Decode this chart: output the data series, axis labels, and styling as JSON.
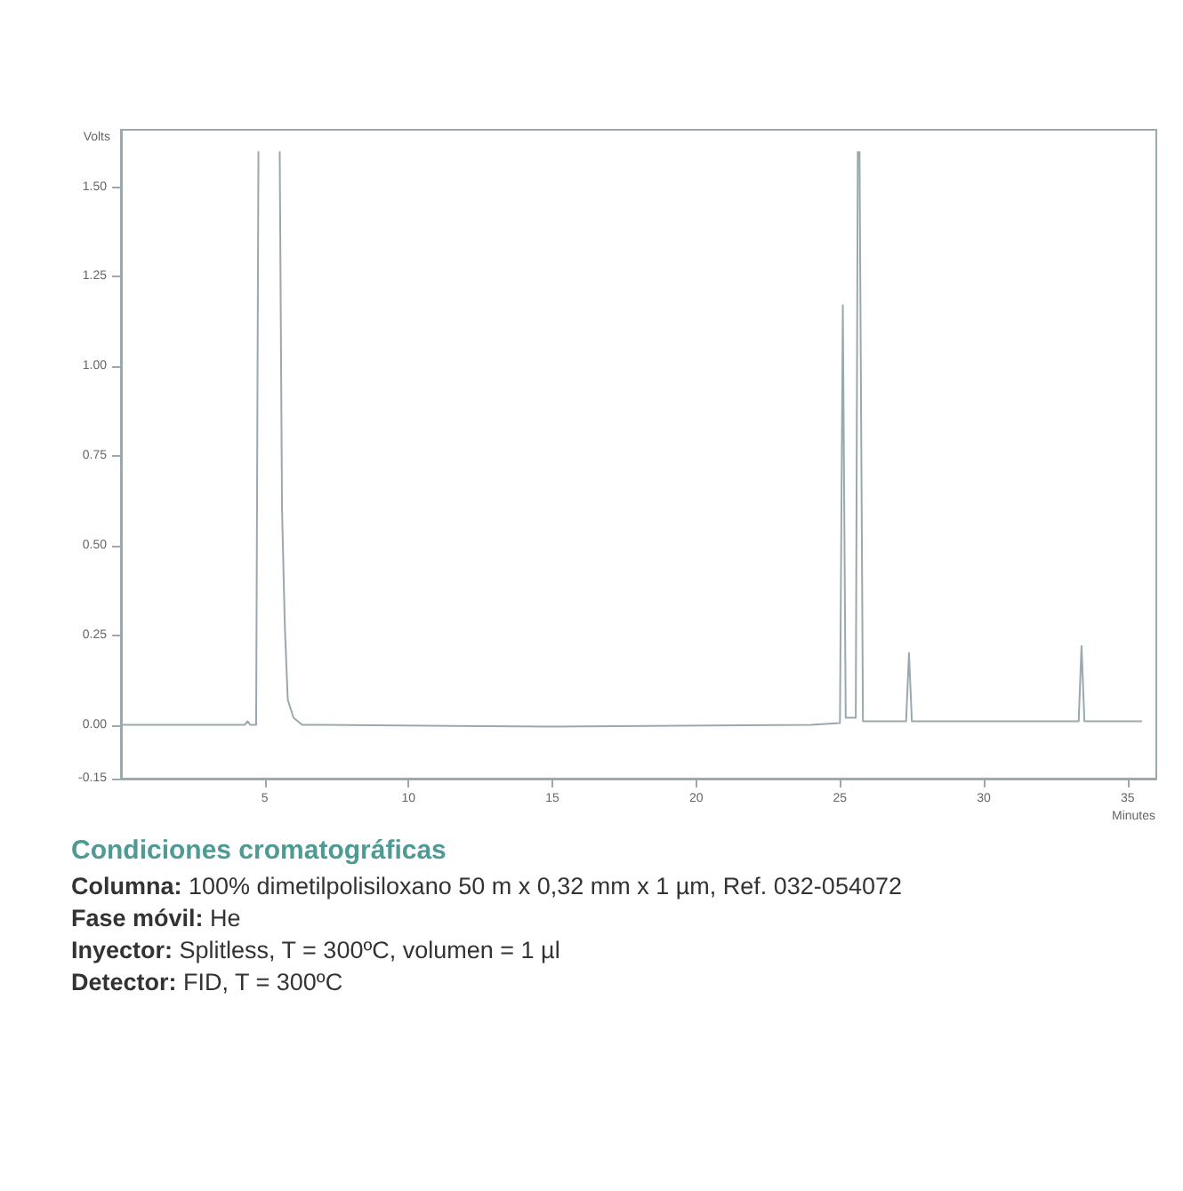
{
  "chart_data": {
    "type": "line",
    "title": "Condiciones cromatográficas",
    "xlabel": "Minutes",
    "ylabel": "Volts",
    "x": [
      0,
      2,
      4.3,
      4.4,
      4.5,
      4.7,
      4.78,
      4.8,
      5.5,
      5.52,
      5.6,
      5.7,
      5.8,
      6.0,
      6.3,
      7,
      15,
      24,
      25.0,
      25.1,
      25.2,
      25.55,
      25.62,
      25.65,
      25.68,
      25.8,
      27.3,
      27.4,
      27.5,
      33.3,
      33.4,
      33.5,
      35.5
    ],
    "values": [
      0,
      0,
      0,
      0.01,
      0,
      0,
      1.6,
      null,
      null,
      1.6,
      0.6,
      0.27,
      0.07,
      0.02,
      0,
      0,
      -0.005,
      0,
      0.005,
      1.17,
      0.02,
      0.02,
      1.6,
      null,
      1.6,
      0.01,
      0.01,
      0.2,
      0.01,
      0.01,
      0.22,
      0.01,
      0.01
    ],
    "color": "#9aa9ad",
    "marker": "none",
    "line_style": "solid",
    "grid": false,
    "xlim": [
      0,
      36
    ],
    "ylim": [
      -0.15,
      1.66
    ],
    "xticks": [
      5,
      10,
      15,
      20,
      25,
      30,
      35
    ],
    "yticks": [
      {
        "value": -0.15,
        "label": "-0.15"
      },
      {
        "value": 0,
        "label": "0.00"
      },
      {
        "value": 0.25,
        "label": "0.25"
      },
      {
        "value": 0.5,
        "label": "0.50"
      },
      {
        "value": 0.75,
        "label": "0.75"
      },
      {
        "value": 1,
        "label": "1.00"
      },
      {
        "value": 1.25,
        "label": "1.25"
      },
      {
        "value": 1.5,
        "label": "1.50"
      }
    ],
    "annotations": [
      "Columna: 100% dimetilpolisiloxano 50 m x 0,32 mm x 1 µm, Ref. 032-054072",
      "Fase móvil: He",
      "Inyector: Splitless, T = 300ºC, volumen = 1 µl",
      "Detector: FID, T = 300ºC"
    ]
  }
}
